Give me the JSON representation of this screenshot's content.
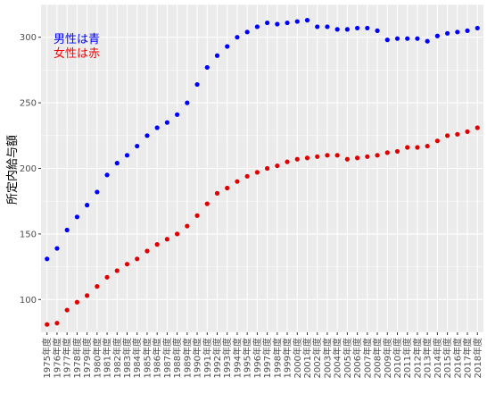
{
  "chart_data": {
    "type": "scatter",
    "ylabel": "所定内給与額",
    "ylim": [
      75,
      325
    ],
    "yticks": [
      100,
      150,
      200,
      250,
      300
    ],
    "grid": true,
    "legend_placement": "top-left",
    "annotations": [
      {
        "text": "男性は青",
        "color": "#0000ff"
      },
      {
        "text": "女性は赤",
        "color": "#ff0000"
      }
    ],
    "categories": [
      "1975年度",
      "1976年度",
      "1977年度",
      "1978年度",
      "1979年度",
      "1980年度",
      "1981年度",
      "1982年度",
      "1983年度",
      "1984年度",
      "1985年度",
      "1986年度",
      "1987年度",
      "1988年度",
      "1989年度",
      "1990年度",
      "1991年度",
      "1992年度",
      "1993年度",
      "1994年度",
      "1995年度",
      "1996年度",
      "1997年度",
      "1998年度",
      "1999年度",
      "2000年度",
      "2001年度",
      "2002年度",
      "2003年度",
      "2004年度",
      "2005年度",
      "2006年度",
      "2007年度",
      "2008年度",
      "2009年度",
      "2010年度",
      "2011年度",
      "2012年度",
      "2013年度",
      "2014年度",
      "2015年度",
      "2016年度",
      "2017年度",
      "2018年度"
    ],
    "series": [
      {
        "color": "#0000ff",
        "values": [
          131,
          139,
          153,
          163,
          172,
          182,
          195,
          204,
          210,
          217,
          225,
          231,
          235,
          241,
          250,
          264,
          277,
          286,
          293,
          300,
          304,
          308,
          311,
          310,
          311,
          312,
          313,
          308,
          308,
          306,
          306,
          307,
          307,
          305,
          298,
          299,
          299,
          299,
          297,
          301,
          303,
          304,
          305,
          307
        ]
      },
      {
        "color": "#e00000",
        "values": [
          81,
          82,
          92,
          98,
          103,
          110,
          117,
          122,
          127,
          131,
          137,
          142,
          146,
          150,
          156,
          164,
          173,
          181,
          185,
          190,
          194,
          197,
          200,
          202,
          205,
          207,
          208,
          209,
          210,
          210,
          207,
          208,
          209,
          210,
          212,
          213,
          216,
          216,
          217,
          221,
          225,
          226,
          228,
          231
        ]
      }
    ]
  }
}
